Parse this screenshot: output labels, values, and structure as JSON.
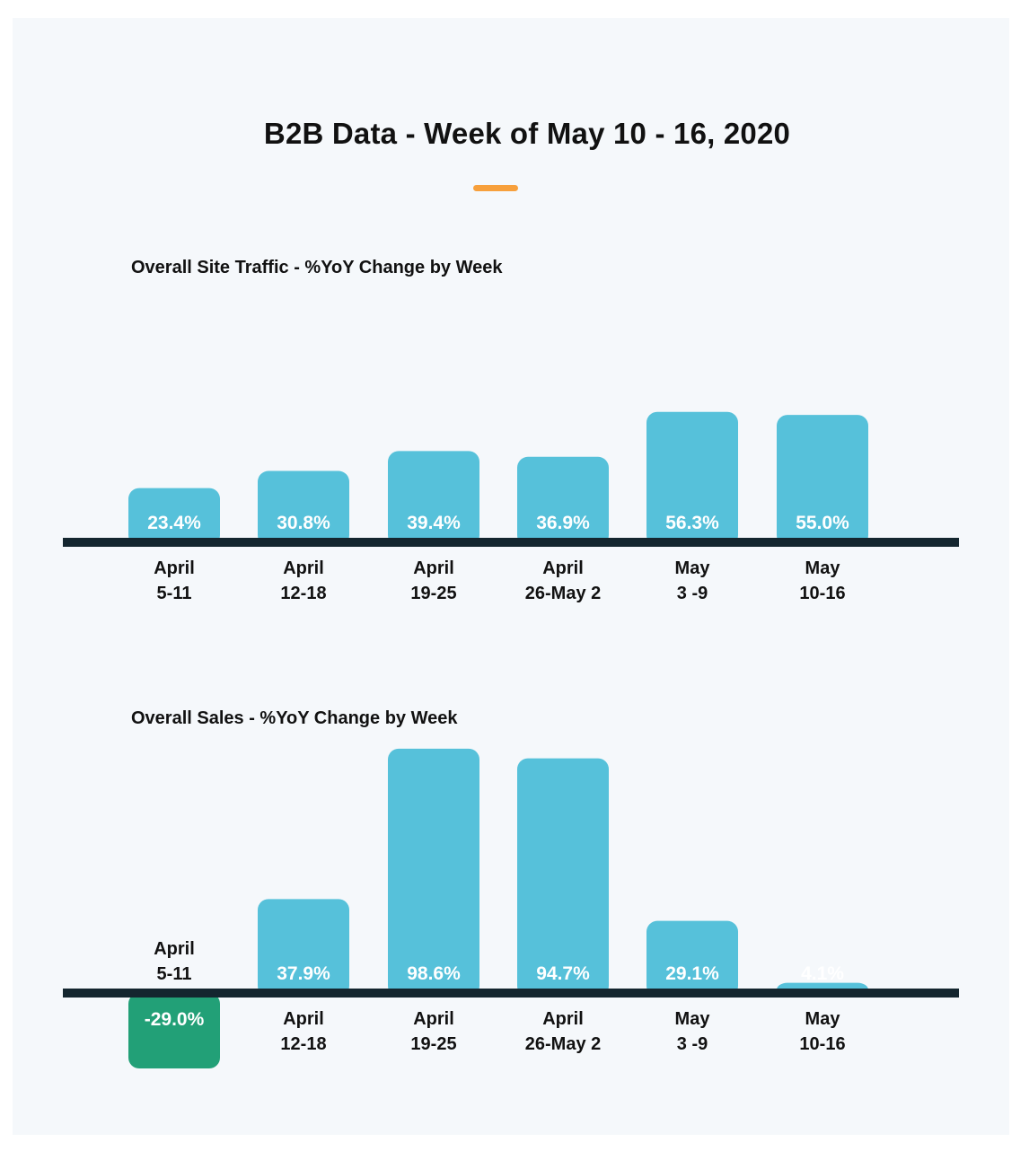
{
  "header": {
    "title": "B2B Data - Week of May 10 - 16, 2020",
    "accent_color": "#f7a03c"
  },
  "colors": {
    "bar_positive": "#56c1da",
    "bar_negative": "#22a077",
    "axis": "#14262f"
  },
  "chart_data": [
    {
      "type": "bar",
      "title": "Overall Site Traffic - %YoY Change by Week",
      "categories": [
        [
          "April",
          "5-11"
        ],
        [
          "April",
          "12-18"
        ],
        [
          "April",
          "19-25"
        ],
        [
          "April",
          "26-May 2"
        ],
        [
          "May",
          "3 -9"
        ],
        [
          "May",
          "10-16"
        ]
      ],
      "values": [
        23.4,
        30.8,
        39.4,
        36.9,
        56.3,
        55.0
      ],
      "data_labels": [
        "23.4%",
        "30.8%",
        "39.4%",
        "36.9%",
        "56.3%",
        "55.0%"
      ],
      "unit": "%"
    },
    {
      "type": "bar",
      "title": "Overall Sales - %YoY Change by Week",
      "categories": [
        [
          "April",
          "5-11"
        ],
        [
          "April",
          "12-18"
        ],
        [
          "April",
          "19-25"
        ],
        [
          "April",
          "26-May 2"
        ],
        [
          "May",
          "3 -9"
        ],
        [
          "May",
          "10-16"
        ]
      ],
      "values": [
        -29.0,
        37.9,
        98.6,
        94.7,
        29.1,
        4.1
      ],
      "data_labels": [
        "-29.0%",
        "37.9%",
        "98.6%",
        "94.7%",
        "29.1%",
        "4.1%"
      ],
      "unit": "%"
    }
  ]
}
